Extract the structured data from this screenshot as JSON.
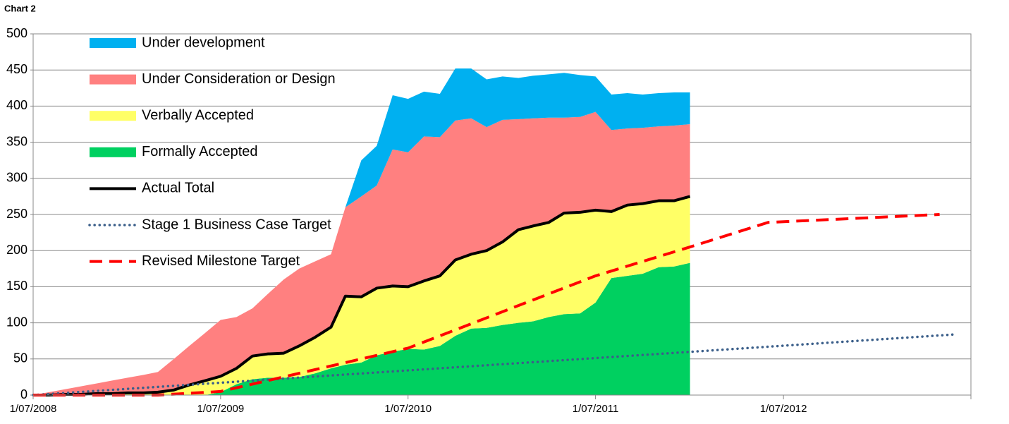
{
  "chart_data": {
    "type": "area",
    "title": "Chart 2",
    "x": [
      "2008-07-01",
      "2008-08-01",
      "2008-09-01",
      "2008-10-01",
      "2008-11-01",
      "2008-12-01",
      "2009-01-01",
      "2009-02-01",
      "2009-03-01",
      "2009-04-01",
      "2009-05-01",
      "2009-06-01",
      "2009-07-01",
      "2009-08-01",
      "2009-09-01",
      "2009-10-01",
      "2009-11-01",
      "2009-12-01",
      "2010-01-01",
      "2010-02-01",
      "2010-03-01",
      "2010-04-01",
      "2010-05-01",
      "2010-06-01",
      "2010-07-01",
      "2010-08-01",
      "2010-09-01",
      "2010-10-01",
      "2010-11-01",
      "2010-12-01",
      "2011-01-01",
      "2011-02-01",
      "2011-03-01",
      "2011-04-01",
      "2011-05-01",
      "2011-06-01",
      "2011-07-01",
      "2011-08-01",
      "2011-09-01",
      "2011-10-01",
      "2011-11-01",
      "2011-12-01",
      "2012-01-01"
    ],
    "series": [
      {
        "name": "Under development",
        "color": "#00b0f0",
        "stacked": true,
        "values": [
          0,
          0,
          0,
          0,
          0,
          0,
          0,
          0,
          0,
          0,
          0,
          0,
          0,
          0,
          0,
          0,
          0,
          0,
          0,
          0,
          0,
          50,
          55,
          75,
          74,
          62,
          60,
          72,
          69,
          66,
          60,
          57,
          59,
          60,
          62,
          58,
          49,
          49,
          49,
          46,
          46,
          46,
          44
        ]
      },
      {
        "name": "Under Consideration or Design",
        "color": "#ff8080",
        "stacked": true,
        "values": [
          0,
          4,
          7,
          11,
          14,
          18,
          21,
          25,
          28,
          43,
          54,
          66,
          78,
          71,
          66,
          83,
          102,
          107,
          105,
          101,
          123,
          139,
          142,
          189,
          186,
          200,
          192,
          193,
          188,
          171,
          169,
          153,
          149,
          145,
          132,
          132,
          136,
          113,
          106,
          105,
          103,
          104,
          100
        ]
      },
      {
        "name": "Verbally Accepted",
        "color": "#ffff66",
        "stacked": true,
        "values": [
          0,
          0,
          1,
          1,
          2,
          2,
          3,
          3,
          4,
          7,
          14,
          20,
          22,
          22,
          32,
          33,
          34,
          43,
          50,
          57,
          95,
          91,
          93,
          91,
          86,
          95,
          97,
          105,
          103,
          107,
          115,
          129,
          132,
          131,
          140,
          140,
          128,
          92,
          98,
          97,
          92,
          91,
          92
        ]
      },
      {
        "name": "Formally Accepted",
        "color": "#00d060",
        "stacked": true,
        "values": [
          0,
          0,
          0,
          0,
          0,
          0,
          0,
          0,
          0,
          0,
          0,
          0,
          4,
          15,
          22,
          24,
          24,
          25,
          30,
          37,
          42,
          45,
          55,
          60,
          64,
          63,
          68,
          82,
          92,
          93,
          97,
          100,
          102,
          108,
          112,
          113,
          128,
          162,
          165,
          168,
          177,
          178,
          183
        ]
      },
      {
        "name": "Actual Total",
        "color": "#000000",
        "line_style": "solid",
        "values": [
          0,
          0,
          1,
          1,
          2,
          2,
          3,
          3,
          4,
          7,
          14,
          20,
          26,
          37,
          54,
          57,
          58,
          68,
          80,
          94,
          137,
          136,
          148,
          151,
          150,
          158,
          165,
          187,
          195,
          200,
          212,
          229,
          234,
          239,
          252,
          253,
          256,
          254,
          263,
          265,
          269,
          269,
          275
        ]
      },
      {
        "name": "Stage 1 Business Case Target",
        "color": "#3b5f8a",
        "line_style": "dotted",
        "x": [
          "2008-07-01",
          "2013-06-01"
        ],
        "values": [
          0,
          84
        ]
      },
      {
        "name": "Revised Milestone Target",
        "color": "#ff0000",
        "line_style": "dashed",
        "x": [
          "2008-07-01",
          "2009-03-01",
          "2009-07-01",
          "2010-07-01",
          "2011-07-01",
          "2012-01-01",
          "2012-06-01",
          "2013-05-01"
        ],
        "values": [
          0,
          0,
          5,
          65,
          165,
          205,
          239,
          250
        ]
      }
    ],
    "xlim": [
      "2008-07-01",
      "2013-07-01"
    ],
    "xticks": [
      {
        "value": "2008-07-01",
        "label": "1/07/2008"
      },
      {
        "value": "2009-07-01",
        "label": "1/07/2009"
      },
      {
        "value": "2010-07-01",
        "label": "1/07/2010"
      },
      {
        "value": "2011-07-01",
        "label": "1/07/2011"
      },
      {
        "value": "2012-07-01",
        "label": "1/07/2012"
      }
    ],
    "ylim": [
      0,
      500
    ],
    "yticks": [
      0,
      50,
      100,
      150,
      200,
      250,
      300,
      350,
      400,
      450,
      500
    ],
    "grid": true,
    "legend": "upper left"
  }
}
